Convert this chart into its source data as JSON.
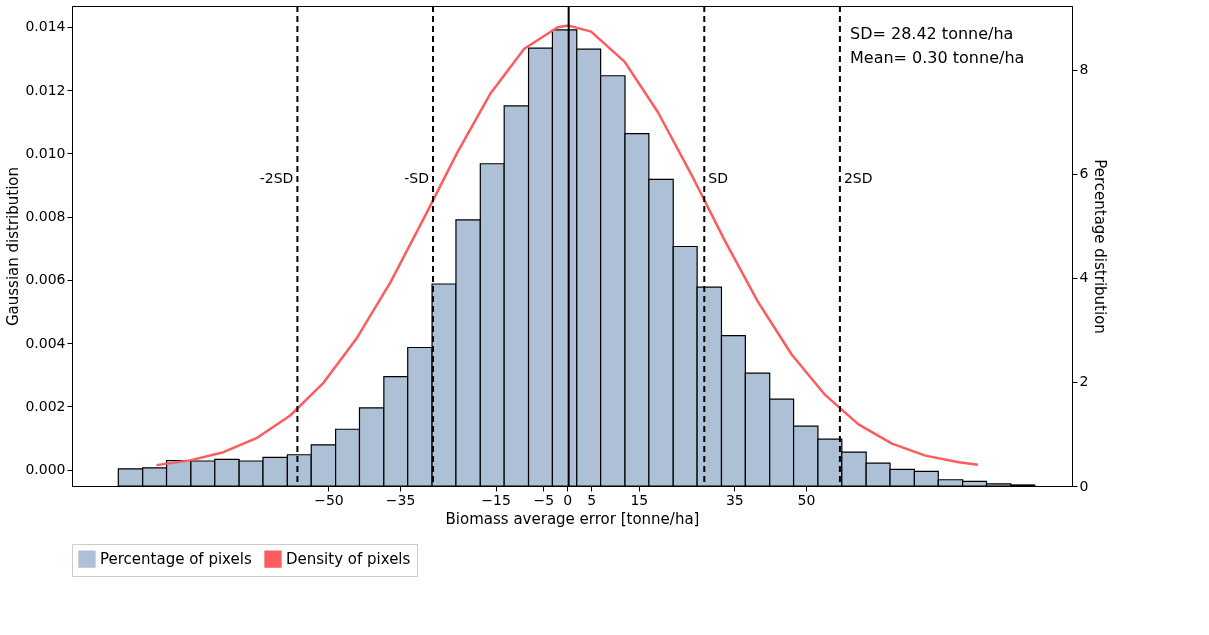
{
  "chart_data": {
    "type": "histogram",
    "xlabel": "Biomass average error [tonne/ha]",
    "ylabel": "Gaussian distribution",
    "y2label": "Percentage distribution",
    "annotations": [
      "SD= 28.42 tonne/ha",
      "Mean= 0.30 tonne/ha"
    ],
    "xlim": [
      -103.7,
      105.7
    ],
    "xticks": [
      -50,
      -35,
      -15,
      -5,
      0,
      5,
      15,
      35,
      50
    ],
    "ylim": [
      -0.00052,
      0.01466
    ],
    "yticks": [
      {
        "value": 0,
        "label": "0.000"
      },
      {
        "value": 0.002,
        "label": "0.002"
      },
      {
        "value": 0.004,
        "label": "0.004"
      },
      {
        "value": 0.006,
        "label": "0.006"
      },
      {
        "value": 0.008,
        "label": "0.008"
      },
      {
        "value": 0.01,
        "label": "0.010"
      },
      {
        "value": 0.012,
        "label": "0.012"
      },
      {
        "value": 0.014,
        "label": "0.014"
      }
    ],
    "y2lim": [
      0,
      9.22
    ],
    "y2ticks": [
      0,
      2,
      4,
      6,
      8
    ],
    "grid": false,
    "legend": "bottom",
    "series": [
      {
        "name": "Percentage of pixels",
        "axis": "y2",
        "color": "#adc0d5",
        "bins": [
          -94,
          -88.9,
          -83.9,
          -78.8,
          -73.8,
          -68.7,
          -63.7,
          -58.6,
          -53.6,
          -48.5,
          -43.5,
          -38.4,
          -33.4,
          -28.3,
          -23.3,
          -18.2,
          -13.2,
          -8.1,
          -3.1,
          2.0,
          7.0,
          12.1,
          17.1,
          22.2,
          27.2,
          32.3,
          37.3,
          42.4,
          47.4,
          52.5,
          57.5,
          62.6,
          67.6,
          72.7,
          77.7,
          82.8,
          87.8,
          92.9,
          97.9
        ],
        "values": [
          0.33,
          0.35,
          0.49,
          0.48,
          0.51,
          0.48,
          0.55,
          0.6,
          0.79,
          1.09,
          1.5,
          2.1,
          2.66,
          3.88,
          5.11,
          6.19,
          7.3,
          8.41,
          8.76,
          8.39,
          7.88,
          6.77,
          5.89,
          4.6,
          3.82,
          2.89,
          2.17,
          1.67,
          1.15,
          0.9,
          0.65,
          0.44,
          0.32,
          0.28,
          0.12,
          0.09,
          0.04,
          0.02
        ]
      },
      {
        "name": "Density of pixels",
        "type": "line",
        "color": "#fd5c5c",
        "x": [
          -86,
          -79,
          -72,
          -65,
          -58,
          -51,
          -44,
          -37,
          -30,
          -23,
          -16,
          -9,
          -2,
          0.3,
          5,
          12,
          19,
          26,
          33,
          40,
          47,
          54,
          61,
          68,
          75,
          82,
          86
        ],
        "values": [
          0.00014,
          0.00029,
          0.00055,
          0.001,
          0.00171,
          0.00275,
          0.00417,
          0.00593,
          0.00795,
          0.01003,
          0.01191,
          0.01331,
          0.01399,
          0.01404,
          0.01385,
          0.0129,
          0.0113,
          0.00933,
          0.00724,
          0.00529,
          0.00364,
          0.00236,
          0.00143,
          0.00082,
          0.00044,
          0.00023,
          0.00015
        ]
      }
    ],
    "ref_lines": [
      {
        "axis": "x",
        "value": -56.5,
        "label": "-2SD",
        "line_style": "dashed"
      },
      {
        "axis": "x",
        "value": -28.1,
        "label": "-SD",
        "line_style": "dashed"
      },
      {
        "axis": "x",
        "value": 0.3,
        "label": null,
        "line_style": "solid"
      },
      {
        "axis": "x",
        "value": 28.7,
        "label": "SD",
        "line_style": "dashed"
      },
      {
        "axis": "x",
        "value": 57.1,
        "label": "2SD",
        "line_style": "dashed"
      }
    ]
  }
}
